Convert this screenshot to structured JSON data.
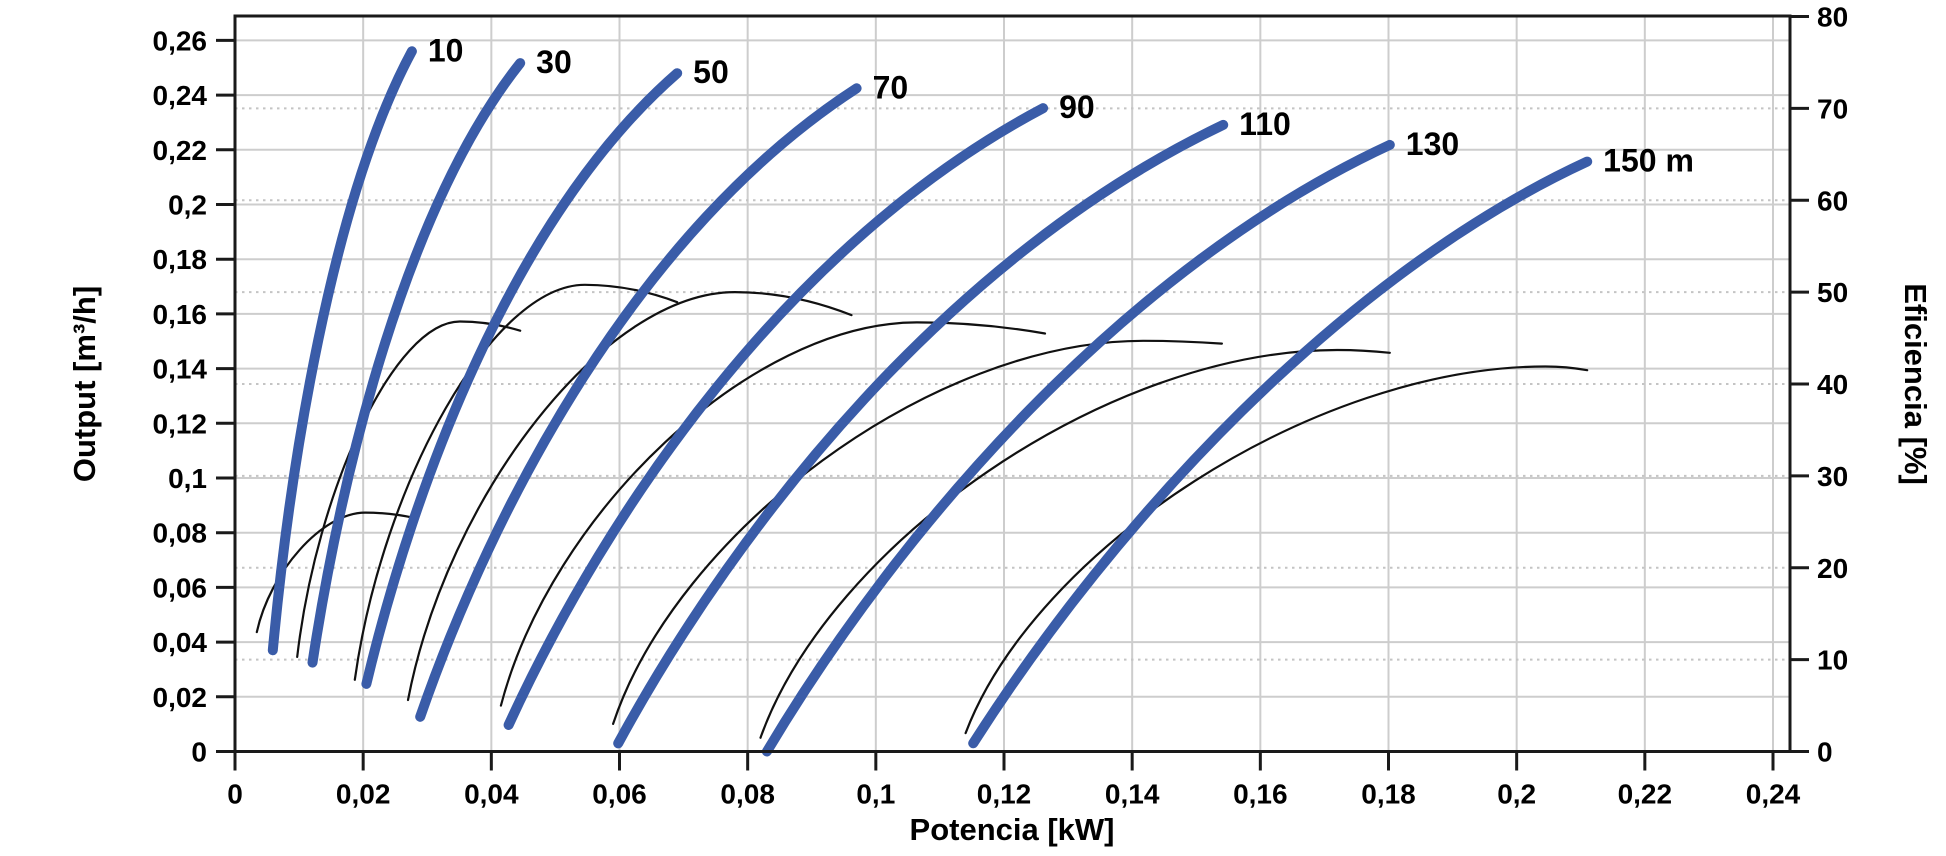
{
  "chart_data": {
    "type": "line",
    "title": "",
    "xlabel": "Potencia [kW]",
    "ylabel_left": "Output [m³/h]",
    "ylabel_right": "Eficiencia [%]",
    "x_axis": {
      "min": 0,
      "max": 0.2427,
      "ticks": [
        0,
        0.02,
        0.04,
        0.06,
        0.08,
        0.1,
        0.12,
        0.14,
        0.16,
        0.18,
        0.2,
        0.22,
        0.24
      ],
      "tick_labels": [
        "0",
        "0,02",
        "0,04",
        "0,06",
        "0,08",
        "0,1",
        "0,12",
        "0,14",
        "0,16",
        "0,18",
        "0,2",
        "0,22",
        "0,24"
      ],
      "grid": "solid"
    },
    "y_left_axis": {
      "min": 0,
      "max": 0.269,
      "ticks": [
        0,
        0.02,
        0.04,
        0.06,
        0.08,
        0.1,
        0.12,
        0.14,
        0.16,
        0.18,
        0.2,
        0.22,
        0.24,
        0.26
      ],
      "tick_labels": [
        "0",
        "0,02",
        "0,04",
        "0,06",
        "0,08",
        "0,1",
        "0,12",
        "0,14",
        "0,16",
        "0,18",
        "0,2",
        "0,22",
        "0,24",
        "0,26"
      ],
      "grid": "solid"
    },
    "y_right_axis": {
      "min": 0,
      "max": 80,
      "ticks": [
        0,
        10,
        20,
        30,
        40,
        50,
        60,
        70,
        80
      ],
      "tick_labels": [
        "0",
        "10",
        "20",
        "30",
        "40",
        "50",
        "60",
        "70",
        "80"
      ],
      "grid": "dotted"
    },
    "head_curves": [
      {
        "label": "10",
        "start": [
          0.0059,
          0.037
        ],
        "end": [
          0.0276,
          0.256
        ]
      },
      {
        "label": "30",
        "start": [
          0.0121,
          0.0325
        ],
        "end": [
          0.0445,
          0.2517
        ]
      },
      {
        "label": "50",
        "start": [
          0.0205,
          0.0247
        ],
        "end": [
          0.069,
          0.248
        ]
      },
      {
        "label": "70",
        "start": [
          0.0289,
          0.0127
        ],
        "end": [
          0.097,
          0.2425
        ]
      },
      {
        "label": "90",
        "start": [
          0.0427,
          0.0097
        ],
        "end": [
          0.1261,
          0.2352
        ]
      },
      {
        "label": "110",
        "start": [
          0.0598,
          0.003
        ],
        "end": [
          0.1542,
          0.2291
        ]
      },
      {
        "label": "130",
        "start": [
          0.083,
          0.0
        ],
        "end": [
          0.1802,
          0.2218
        ]
      },
      {
        "label": "150 m",
        "start": [
          0.1152,
          0.003
        ],
        "end": [
          0.211,
          0.2157
        ]
      }
    ],
    "efficiency_curves": [
      {
        "head": "10",
        "start": [
          0.0034,
          13.0
        ],
        "peak": [
          0.0203,
          26.0
        ],
        "end": [
          0.0281,
          25.4
        ]
      },
      {
        "head": "30",
        "start": [
          0.0097,
          10.3
        ],
        "peak": [
          0.0351,
          46.8
        ],
        "end": [
          0.0445,
          45.8
        ]
      },
      {
        "head": "50",
        "start": [
          0.0187,
          7.8
        ],
        "peak": [
          0.0546,
          50.8
        ],
        "end": [
          0.069,
          48.9
        ]
      },
      {
        "head": "70",
        "start": [
          0.027,
          5.6
        ],
        "peak": [
          0.078,
          50.0
        ],
        "end": [
          0.0962,
          47.5
        ]
      },
      {
        "head": "90",
        "start": [
          0.0415,
          5.0
        ],
        "peak": [
          0.1064,
          46.7
        ],
        "end": [
          0.1264,
          45.5
        ]
      },
      {
        "head": "110",
        "start": [
          0.059,
          3.0
        ],
        "peak": [
          0.1417,
          44.7
        ],
        "end": [
          0.154,
          44.4
        ]
      },
      {
        "head": "130",
        "start": [
          0.082,
          1.5
        ],
        "peak": [
          0.172,
          43.7
        ],
        "end": [
          0.1802,
          43.4
        ]
      },
      {
        "head": "150",
        "start": [
          0.114,
          2.0
        ],
        "peak": [
          0.2045,
          41.9
        ],
        "end": [
          0.211,
          41.5
        ]
      }
    ],
    "colors": {
      "head_curve": "#3A5CA8",
      "efficiency_curve": "#111111",
      "grid_solid": "#cdcdcd",
      "grid_dotted": "#c4c4c4",
      "axis": "#1a1a1a",
      "text": "#000000",
      "background": "#ffffff"
    },
    "legend": "none"
  }
}
